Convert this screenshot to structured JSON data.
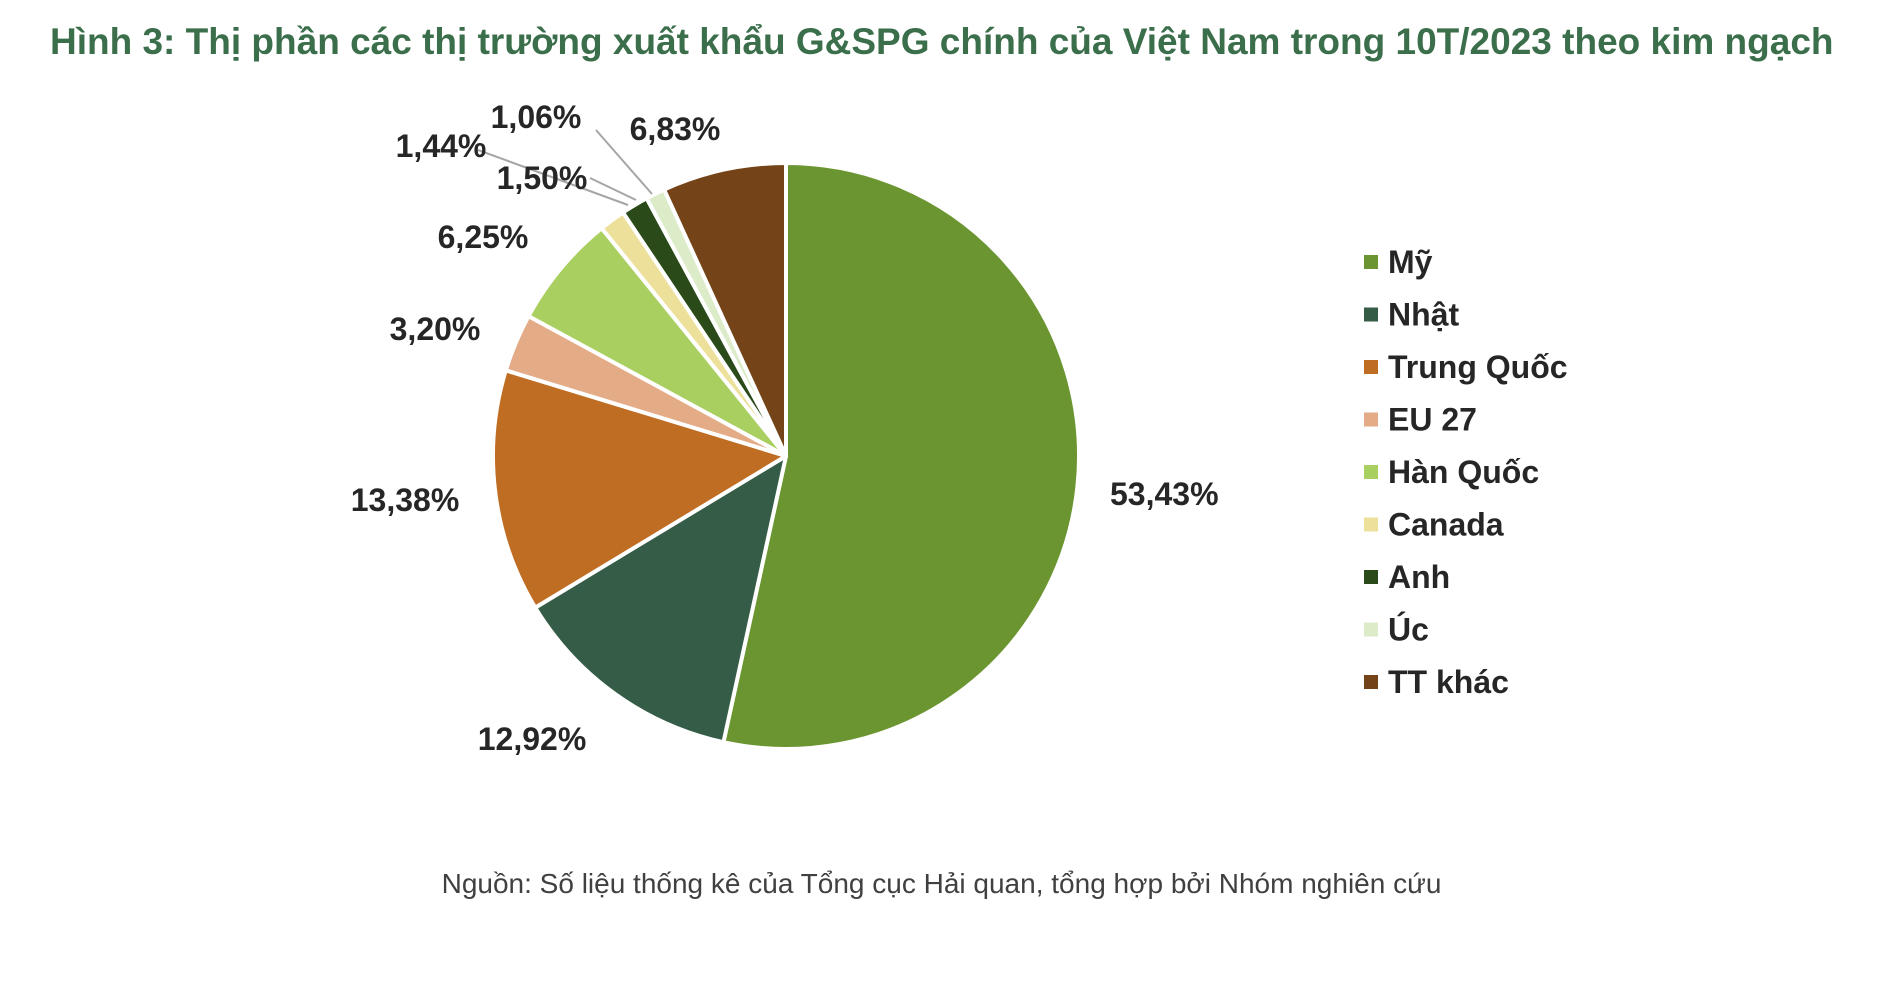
{
  "chart_data": {
    "type": "pie",
    "title": "Hình 3: Thị phần các thị trường xuất khẩu G&SPG chính của Việt Nam trong 10T/2023 theo kim ngạch",
    "categories": [
      "Mỹ",
      "Nhật",
      "Trung Quốc",
      "EU 27",
      "Hàn Quốc",
      "Canada",
      "Anh",
      "Úc",
      "TT khác"
    ],
    "values": [
      53.43,
      12.92,
      13.38,
      3.2,
      6.25,
      1.44,
      1.5,
      1.06,
      6.83
    ],
    "labels": [
      "53,43%",
      "12,92%",
      "13,38%",
      "3,20%",
      "6,25%",
      "1,44%",
      "1,50%",
      "1,06%",
      "6,83%"
    ],
    "colors": [
      "#6b9530",
      "#355c46",
      "#c06d24",
      "#e3ab86",
      "#a9cf60",
      "#ede09a",
      "#2b4a19",
      "#dcebc8",
      "#744418"
    ],
    "legend_position": "right"
  },
  "source": "Nguồn: Số liệu thống kê của Tổng cục Hải quan, tổng hợp bởi Nhóm nghiên cứu"
}
